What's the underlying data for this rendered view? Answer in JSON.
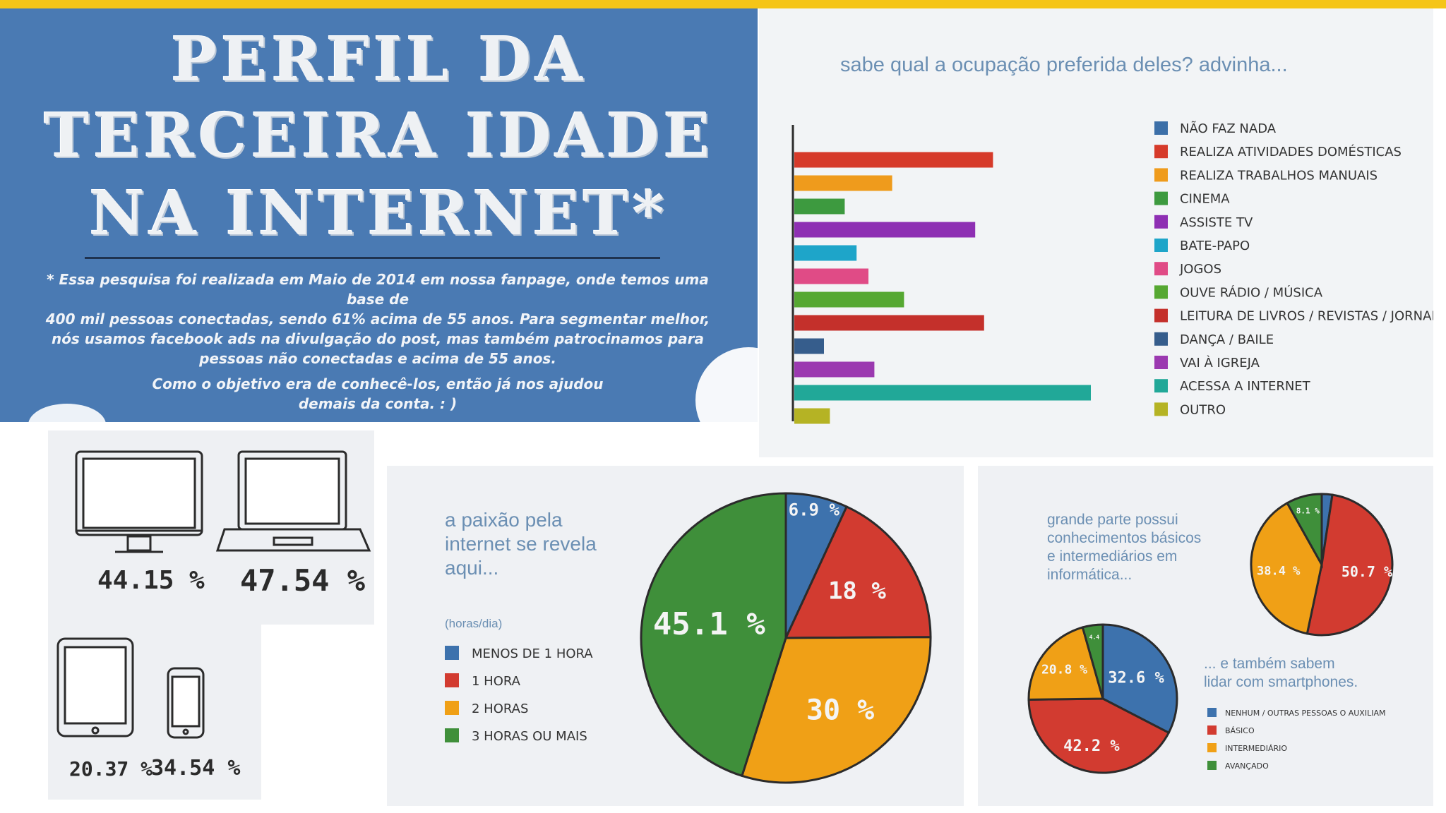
{
  "title": {
    "line1": "PERFIL DA",
    "line2": "TERCEIRA IDADE",
    "line3": "NA INTERNET*",
    "note1": "* Essa pesquisa foi realizada em Maio de 2014 em nossa fanpage, onde temos uma base de",
    "note2": "400 mil pessoas conectadas, sendo 61% acima de 55 anos. Para segmentar melhor,",
    "note3": "nós usamos facebook ads na divulgação do post, mas também patrocinamos para",
    "note4": "pessoas não conectadas e acima de 55 anos.",
    "note5": "Como o objetivo era de conhecê-los, então já nos ajudou",
    "note6": "demais da conta. : )"
  },
  "devices": {
    "desktop_pct": "44.15 %",
    "laptop_pct": "47.54 %",
    "tablet_pct": "20.37 %",
    "phone_pct": "34.54 %"
  },
  "chart_data": [
    {
      "type": "bar",
      "orientation": "horizontal",
      "title": "sabe qual a ocupação preferida deles? advinha...",
      "categories": [
        "NÃO FAZ NADA",
        "REALIZA ATIVIDADES DOMÉSTICAS",
        "REALIZA TRABALHOS MANUAIS",
        "CINEMA",
        "ASSISTE TV",
        "BATE-PAPO",
        "JOGOS",
        "OUVE RÁDIO / MÚSICA",
        "LEITURA DE LIVROS / REVISTAS / JORNAIS",
        "DANÇA / BAILE",
        "VAI À IGREJA",
        "ACESSA A INTERNET",
        "OUTRO"
      ],
      "values": [
        0,
        67,
        33,
        17,
        61,
        21,
        25,
        37,
        64,
        10,
        27,
        100,
        12
      ],
      "colors": [
        "#3c6fa8",
        "#d63a2a",
        "#ef9b1c",
        "#3d9a3f",
        "#8e2fb3",
        "#1ea5c9",
        "#e04b86",
        "#56a832",
        "#c4302b",
        "#365d8c",
        "#9b39b0",
        "#21a898",
        "#b5b324"
      ],
      "legend": "right"
    },
    {
      "type": "pie",
      "title": "a paixão pela internet se revela aqui...",
      "subtitle": "(horas/dia)",
      "categories": [
        "MENOS DE 1 HORA",
        "1 HORA",
        "2 HORAS",
        "3 HORAS OU MAIS"
      ],
      "values": [
        6.9,
        18,
        30,
        45.1
      ],
      "labels": [
        "6.9 %",
        "18 %",
        "30 %",
        "45.1 %"
      ],
      "colors": [
        "#3d72ad",
        "#d23b30",
        "#f0a016",
        "#3f8f3a"
      ],
      "legend": "left"
    },
    {
      "type": "pie",
      "title": "grande parte possui conhecimentos básicos e intermediários em informática...",
      "values": [
        2.4,
        50.7,
        38.4,
        8.1
      ],
      "labels": [
        "",
        "50.7 %",
        "38.4 %",
        "8.1 %"
      ],
      "colors": [
        "#3d72ad",
        "#d23b30",
        "#f0a016",
        "#3f8f3a"
      ]
    },
    {
      "type": "pie",
      "title": "... e também sabem lidar com smartphones.",
      "categories": [
        "NENHUM / OUTRAS PESSOAS O AUXILIAM",
        "BÁSICO",
        "INTERMEDIÁRIO",
        "AVANÇADO"
      ],
      "values": [
        32.6,
        42.2,
        20.8,
        4.4
      ],
      "labels": [
        "32.6 %",
        "42.2 %",
        "20.8 %",
        "4.4"
      ],
      "colors": [
        "#3d72ad",
        "#d23b30",
        "#f0a016",
        "#3f8f3a"
      ],
      "legend": "right"
    }
  ],
  "pie_text": {
    "left_heading1": "a paixão pela",
    "left_heading2": "internet se revela",
    "left_heading3": "aqui...",
    "right_heading1": "grande parte possui",
    "right_heading2": "conhecimentos básicos",
    "right_heading3": "e intermediários em",
    "right_heading4": "informática...",
    "smart_heading1": "... e também sabem",
    "smart_heading2": "lidar com smartphones."
  }
}
